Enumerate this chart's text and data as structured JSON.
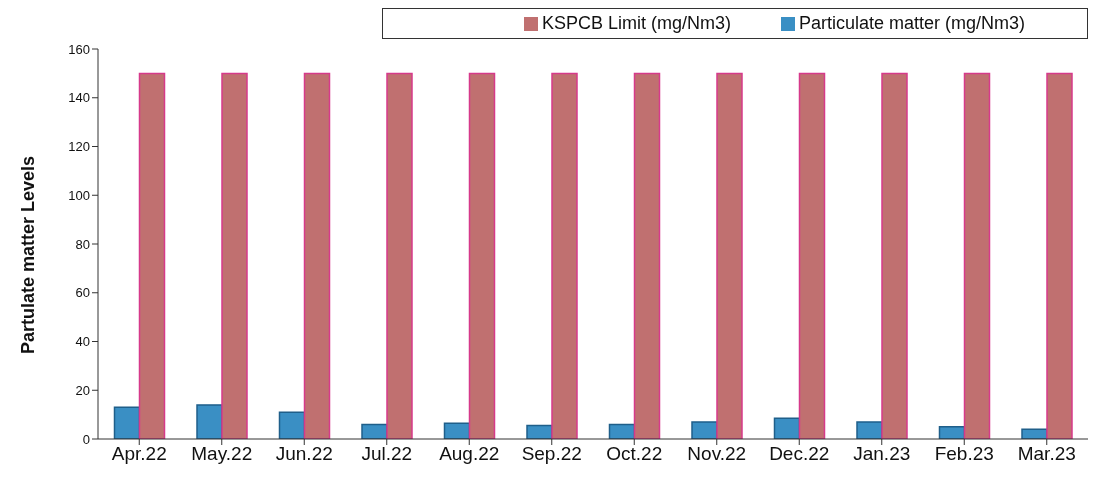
{
  "chart_data": {
    "type": "bar",
    "ylabel": "Partulate matter Levels",
    "categories": [
      "Apr.22",
      "May.22",
      "Jun.22",
      "Jul.22",
      "Aug.22",
      "Sep.22",
      "Oct.22",
      "Nov.22",
      "Dec.22",
      "Jan.23",
      "Feb.23",
      "Mar.23"
    ],
    "series": [
      {
        "name": "Particulate matter (mg/Nm3)",
        "color": "#3a8fc4",
        "values": [
          13,
          14,
          11,
          6,
          6.5,
          5.5,
          6,
          7,
          8.5,
          7,
          5,
          4
        ]
      },
      {
        "name": "KSPCB Limit (mg/Nm3)",
        "color": "#c07070",
        "values": [
          150,
          150,
          150,
          150,
          150,
          150,
          150,
          150,
          150,
          150,
          150,
          150
        ]
      }
    ],
    "ylim": [
      0,
      160
    ],
    "yticks": [
      0,
      20,
      40,
      60,
      80,
      100,
      120,
      140,
      160
    ],
    "grid": false,
    "legend": "top right"
  }
}
